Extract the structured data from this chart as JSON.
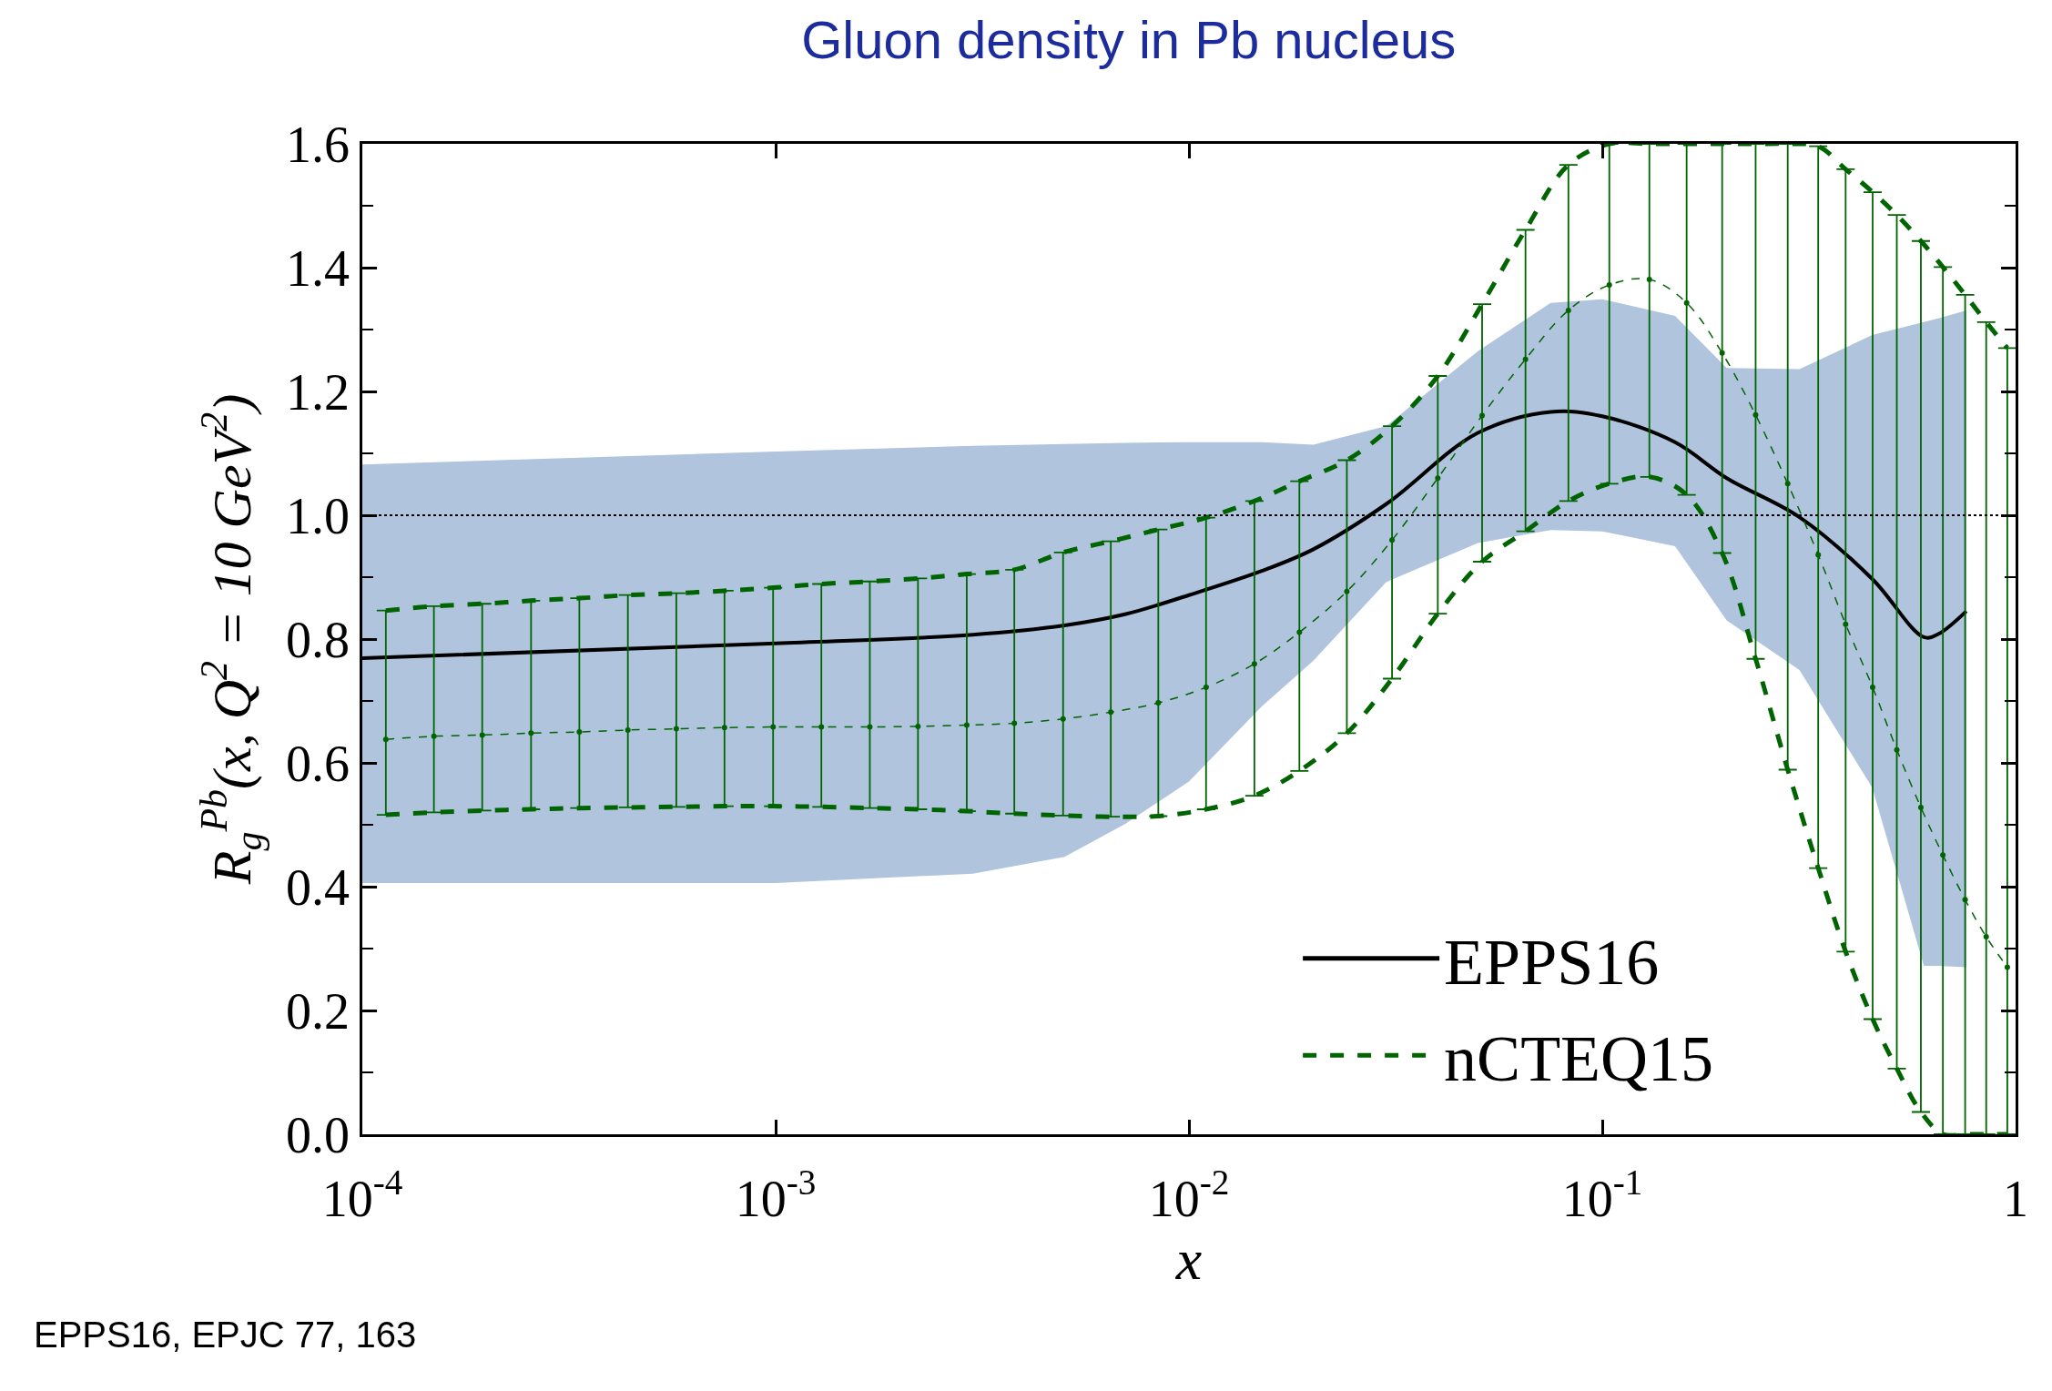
{
  "chart_data": {
    "type": "line",
    "title": "Gluon density in Pb nucleus",
    "xlabel": "x",
    "ylabel": "R$_{g}$$^{Pb}$(x, Q$^{2}$ = 10 GeV$^{2}$)",
    "log": "x",
    "xlim": [
      0.0001,
      1
    ],
    "xticks": [
      {
        "value": 0.0001,
        "label": "10$^{-4}$"
      },
      {
        "value": 0.001,
        "label": "10$^{-3}$"
      },
      {
        "value": 0.01,
        "label": "10$^{-2}$"
      },
      {
        "value": 0.1,
        "label": "10$^{-1}$"
      },
      1
    ],
    "ylim": [
      0,
      1.6
    ],
    "yticks": [
      {
        "value": 0,
        "label": "0.0"
      },
      0.2,
      0.4,
      0.6,
      0.8,
      {
        "value": 1,
        "label": "1.0"
      },
      1.2,
      1.4,
      1.6
    ],
    "legend": "bottom right",
    "ref_lines": [
      {
        "axis": "y",
        "value": 1,
        "color": "#000000",
        "line_style": "dotted"
      }
    ],
    "annotations": [
      "EPPS16, EPJC 77, 163"
    ],
    "series": [
      {
        "name": "EPPS16",
        "color": "#000000",
        "line_style": "solid",
        "marker": "none",
        "x": [
          0.0001,
          0.001,
          0.003,
          0.005,
          0.007,
          0.01,
          0.015,
          0.02,
          0.03,
          0.05,
          0.075,
          0.1,
          0.15,
          0.2,
          0.3,
          0.45,
          0.6,
          0.65,
          0.76
        ],
        "values": [
          0.769,
          0.793,
          0.807,
          0.822,
          0.84,
          0.871,
          0.91,
          0.945,
          1.018,
          1.133,
          1.167,
          1.16,
          1.118,
          1.06,
          0.997,
          0.897,
          0.803,
          0.808,
          0.845
        ],
        "lower": [
          0.406,
          0.406,
          0.421,
          0.448,
          0.501,
          0.57,
          0.691,
          0.765,
          0.892,
          0.955,
          0.976,
          0.974,
          0.95,
          0.83,
          0.75,
          0.56,
          0.272,
          0.272,
          0.27
        ],
        "upper": [
          1.082,
          1.103,
          1.112,
          1.115,
          1.117,
          1.118,
          1.118,
          1.114,
          1.144,
          1.265,
          1.343,
          1.349,
          1.322,
          1.238,
          1.236,
          1.291,
          1.312,
          1.318,
          1.331
        ]
      },
      {
        "name": "nCTEQ15",
        "color": "#006400",
        "line_style": "dashed",
        "marker": "none",
        "x": [
          0.000114,
          0.000149,
          0.000195,
          0.000256,
          0.000335,
          0.000439,
          0.000575,
          0.000752,
          0.000986,
          0.00129,
          0.00169,
          0.00221,
          0.0029,
          0.00378,
          0.00496,
          0.00647,
          0.00843,
          0.011,
          0.0144,
          0.0185,
          0.0241,
          0.031,
          0.04,
          0.0512,
          0.0652,
          0.0828,
          0.104,
          0.13,
          0.16,
          0.195,
          0.235,
          0.281,
          0.333,
          0.388,
          0.451,
          0.516,
          0.59,
          0.667,
          0.755,
          0.849,
          0.955
        ],
        "values": [
          0.846,
          0.853,
          0.857,
          0.862,
          0.866,
          0.871,
          0.874,
          0.878,
          0.883,
          0.889,
          0.893,
          0.898,
          0.905,
          0.912,
          0.94,
          0.958,
          0.977,
          0.996,
          1.023,
          1.055,
          1.089,
          1.144,
          1.225,
          1.341,
          1.461,
          1.566,
          1.6,
          1.6,
          1.6,
          1.6,
          1.6,
          1.6,
          1.596,
          1.559,
          1.522,
          1.485,
          1.443,
          1.401,
          1.356,
          1.312,
          1.27
        ]
      },
      {
        "color": "#006400",
        "line_style": "dashed",
        "marker": "none",
        "x": [
          0.000114,
          0.000149,
          0.000195,
          0.000256,
          0.000335,
          0.000439,
          0.000575,
          0.000752,
          0.000986,
          0.00129,
          0.00169,
          0.00221,
          0.0029,
          0.00378,
          0.00496,
          0.00647,
          0.00843,
          0.011,
          0.0144,
          0.0185,
          0.0241,
          0.031,
          0.04,
          0.0512,
          0.0652,
          0.0828,
          0.104,
          0.13,
          0.16,
          0.195,
          0.235,
          0.281,
          0.333,
          0.388,
          0.451,
          0.516,
          0.59,
          0.667,
          0.755,
          0.849,
          0.955
        ],
        "values": [
          0.516,
          0.52,
          0.523,
          0.525,
          0.527,
          0.528,
          0.529,
          0.53,
          0.53,
          0.529,
          0.527,
          0.525,
          0.522,
          0.518,
          0.515,
          0.513,
          0.514,
          0.525,
          0.547,
          0.587,
          0.648,
          0.736,
          0.841,
          0.925,
          0.974,
          1.023,
          1.051,
          1.062,
          1.033,
          0.939,
          0.768,
          0.589,
          0.43,
          0.295,
          0.186,
          0.106,
          0.036,
          0,
          0,
          0,
          0
        ]
      },
      {
        "color": "#006400",
        "line_style": "dashed",
        "marker": "circle",
        "x": [
          0.000114,
          0.000149,
          0.000195,
          0.000256,
          0.000335,
          0.000439,
          0.000575,
          0.000752,
          0.000986,
          0.00129,
          0.00169,
          0.00221,
          0.0029,
          0.00378,
          0.00496,
          0.00647,
          0.00843,
          0.011,
          0.0144,
          0.0185,
          0.0241,
          0.031,
          0.04,
          0.0512,
          0.0652,
          0.0828,
          0.104,
          0.13,
          0.16,
          0.195,
          0.235,
          0.281,
          0.333,
          0.388,
          0.451,
          0.516,
          0.59,
          0.667,
          0.755,
          0.849,
          0.955
        ],
        "values": [
          0.638,
          0.643,
          0.645,
          0.648,
          0.65,
          0.653,
          0.655,
          0.657,
          0.658,
          0.658,
          0.658,
          0.659,
          0.661,
          0.664,
          0.671,
          0.682,
          0.697,
          0.722,
          0.76,
          0.811,
          0.877,
          0.96,
          1.06,
          1.161,
          1.252,
          1.331,
          1.372,
          1.381,
          1.343,
          1.262,
          1.162,
          1.051,
          0.936,
          0.824,
          0.722,
          0.621,
          0.528,
          0.451,
          0.379,
          0.319,
          0.27
        ],
        "errors": [
          [
            0.516,
            0.846
          ],
          [
            0.52,
            0.853
          ],
          [
            0.523,
            0.857
          ],
          [
            0.525,
            0.862
          ],
          [
            0.527,
            0.866
          ],
          [
            0.528,
            0.871
          ],
          [
            0.529,
            0.874
          ],
          [
            0.53,
            0.878
          ],
          [
            0.53,
            0.883
          ],
          [
            0.529,
            0.889
          ],
          [
            0.527,
            0.893
          ],
          [
            0.525,
            0.898
          ],
          [
            0.522,
            0.905
          ],
          [
            0.518,
            0.912
          ],
          [
            0.515,
            0.94
          ],
          [
            0.513,
            0.958
          ],
          [
            0.514,
            0.977
          ],
          [
            0.525,
            0.996
          ],
          [
            0.547,
            1.023
          ],
          [
            0.587,
            1.055
          ],
          [
            0.648,
            1.089
          ],
          [
            0.736,
            1.144
          ],
          [
            0.841,
            1.225
          ],
          [
            0.925,
            1.341
          ],
          [
            0.974,
            1.461
          ],
          [
            1.023,
            1.566
          ],
          [
            1.051,
            1.6
          ],
          [
            1.062,
            1.6
          ],
          [
            1.033,
            1.6
          ],
          [
            0.939,
            1.6
          ],
          [
            0.768,
            1.6
          ],
          [
            0.589,
            1.6
          ],
          [
            0.43,
            1.596
          ],
          [
            0.295,
            1.559
          ],
          [
            0.186,
            1.522
          ],
          [
            0.106,
            1.485
          ],
          [
            0.036,
            1.443
          ],
          [
            0,
            1.401
          ],
          [
            0,
            1.356
          ],
          [
            0,
            1.312
          ],
          [
            0,
            1.27
          ]
        ]
      }
    ]
  }
}
